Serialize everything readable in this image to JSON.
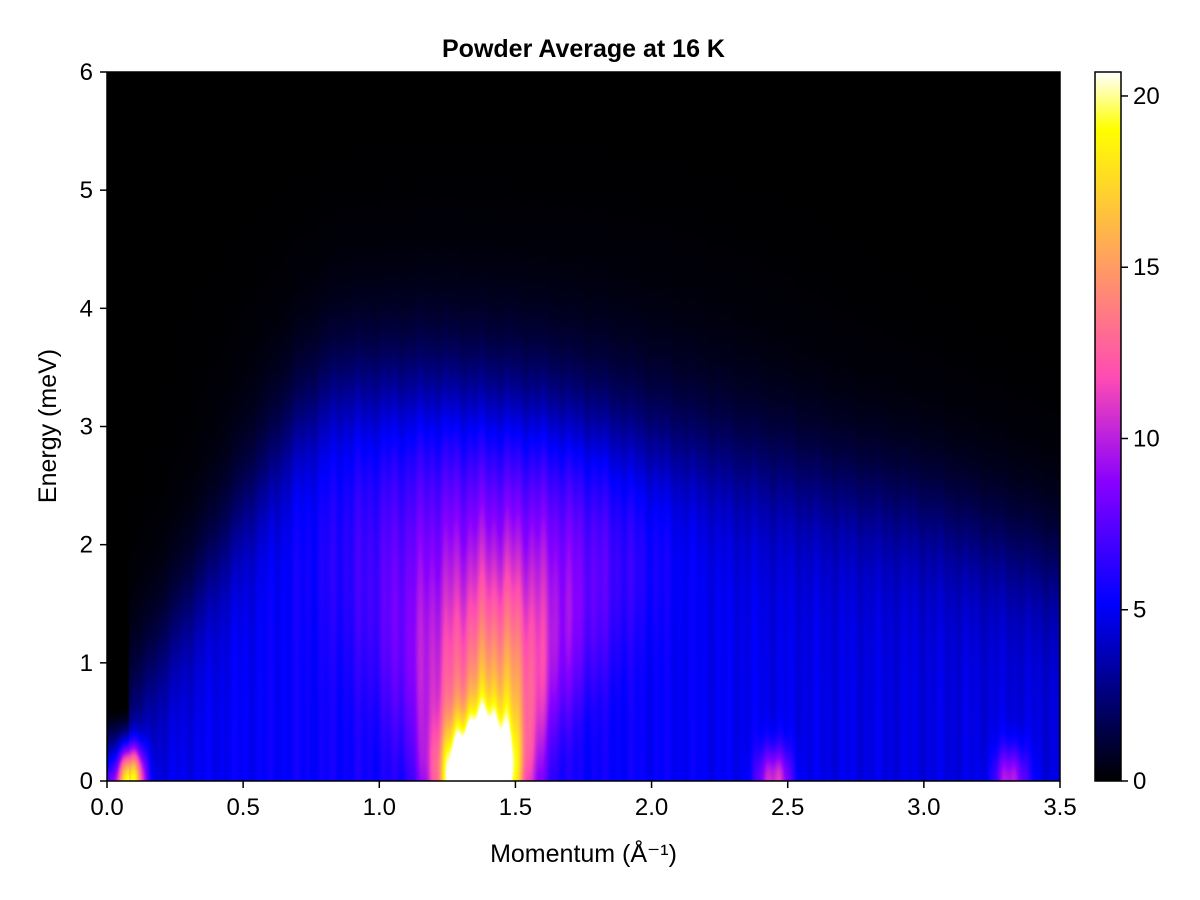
{
  "chart_data": {
    "type": "heatmap",
    "title": "Powder Average at 16 K",
    "xlabel": "Momentum (Å⁻¹)",
    "ylabel": "Energy (meV)",
    "xlim": [
      0.0,
      3.5
    ],
    "ylim": [
      0,
      6
    ],
    "x_ticks": [
      "0.0",
      "0.5",
      "1.0",
      "1.5",
      "2.0",
      "2.5",
      "3.0",
      "3.5"
    ],
    "y_ticks": [
      "0",
      "1",
      "2",
      "3",
      "4",
      "5",
      "6"
    ],
    "colorbar": {
      "colormap": "gnuplot2",
      "range": [
        0,
        20.7
      ],
      "ticks": [
        "0",
        "5",
        "10",
        "15",
        "20"
      ]
    },
    "features": {
      "dispersion_edge": [
        [
          0.0,
          0.25
        ],
        [
          0.1,
          0.35
        ],
        [
          0.3,
          1.2
        ],
        [
          0.5,
          2.0
        ],
        [
          0.7,
          2.7
        ],
        [
          0.85,
          3.0
        ],
        [
          1.2,
          3.0
        ],
        [
          1.6,
          2.8
        ],
        [
          2.0,
          2.5
        ],
        [
          2.5,
          2.3
        ],
        [
          3.0,
          2.0
        ],
        [
          3.5,
          1.5
        ]
      ],
      "hotspots": [
        {
          "q": 0.09,
          "e": 0.1,
          "intensity": 21
        },
        {
          "q": 1.36,
          "e": 0.3,
          "intensity": 22
        },
        {
          "q": 1.45,
          "e": 1.0,
          "intensity": 13
        },
        {
          "q": 2.45,
          "e": 0.25,
          "intensity": 11
        },
        {
          "q": 3.32,
          "e": 0.2,
          "intensity": 10
        }
      ],
      "background_e0": 5
    },
    "grid": false
  }
}
